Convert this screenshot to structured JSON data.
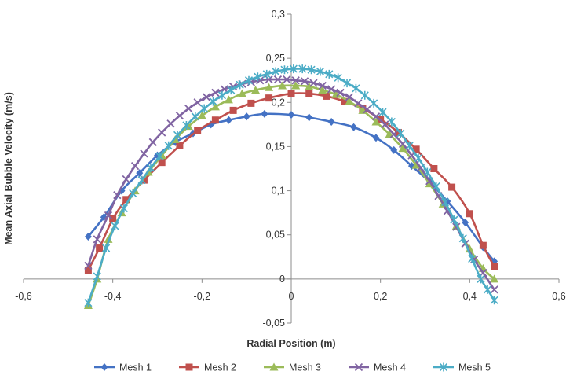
{
  "chart_data": {
    "type": "scatter",
    "title": "",
    "xlabel": "Radial Position (m)",
    "ylabel": "Mean Axial Bubble Velocity (m/s)",
    "xlim": [
      -0.6,
      0.6
    ],
    "ylim": [
      -0.05,
      0.3
    ],
    "x_ticks": [
      -0.6,
      -0.4,
      -0.2,
      0,
      0.2,
      0.4,
      0.6
    ],
    "x_tick_labels": [
      "-0,6",
      "-0,4",
      "-0,2",
      "0",
      "0,2",
      "0,4",
      "0,6"
    ],
    "y_ticks": [
      -0.05,
      0,
      0.05,
      0.1,
      0.15,
      0.2,
      0.25,
      0.3
    ],
    "y_tick_labels": [
      "-0,05",
      "0",
      "0,05",
      "0,1",
      "0,15",
      "0,2",
      "0,25",
      "0,3"
    ],
    "grid": false,
    "legend_position": "bottom",
    "series": [
      {
        "name": "Mesh 1",
        "color": "#4472C4",
        "marker": "diamond",
        "x": [
          -0.455,
          -0.42,
          -0.38,
          -0.34,
          -0.3,
          -0.26,
          -0.22,
          -0.18,
          -0.14,
          -0.1,
          -0.06,
          0,
          0.04,
          0.09,
          0.14,
          0.19,
          0.23,
          0.27,
          0.31,
          0.35,
          0.39,
          0.43,
          0.455
        ],
        "y": [
          0.048,
          0.07,
          0.1,
          0.12,
          0.14,
          0.155,
          0.165,
          0.175,
          0.18,
          0.184,
          0.187,
          0.186,
          0.183,
          0.178,
          0.172,
          0.16,
          0.146,
          0.128,
          0.11,
          0.088,
          0.064,
          0.036,
          0.02
        ]
      },
      {
        "name": "Mesh 2",
        "color": "#C0504D",
        "marker": "square",
        "x": [
          -0.455,
          -0.43,
          -0.4,
          -0.37,
          -0.33,
          -0.29,
          -0.25,
          -0.21,
          -0.17,
          -0.13,
          -0.09,
          -0.05,
          0,
          0.04,
          0.08,
          0.12,
          0.16,
          0.2,
          0.24,
          0.28,
          0.32,
          0.36,
          0.4,
          0.43,
          0.455
        ],
        "y": [
          0.01,
          0.035,
          0.068,
          0.09,
          0.112,
          0.132,
          0.151,
          0.168,
          0.18,
          0.191,
          0.199,
          0.205,
          0.21,
          0.21,
          0.207,
          0.201,
          0.193,
          0.181,
          0.166,
          0.147,
          0.125,
          0.104,
          0.074,
          0.038,
          0.014
        ]
      },
      {
        "name": "Mesh 3",
        "color": "#9BBB59",
        "marker": "triangle",
        "x": [
          -0.455,
          -0.435,
          -0.41,
          -0.38,
          -0.35,
          -0.32,
          -0.29,
          -0.26,
          -0.23,
          -0.2,
          -0.17,
          -0.14,
          -0.11,
          -0.08,
          -0.05,
          -0.02,
          0.01,
          0.04,
          0.07,
          0.1,
          0.13,
          0.16,
          0.19,
          0.22,
          0.25,
          0.28,
          0.31,
          0.34,
          0.37,
          0.4,
          0.43,
          0.455
        ],
        "y": [
          -0.03,
          0.0,
          0.045,
          0.075,
          0.1,
          0.121,
          0.14,
          0.158,
          0.173,
          0.185,
          0.195,
          0.203,
          0.21,
          0.214,
          0.217,
          0.219,
          0.219,
          0.218,
          0.214,
          0.209,
          0.201,
          0.191,
          0.178,
          0.164,
          0.148,
          0.129,
          0.108,
          0.085,
          0.06,
          0.034,
          0.012,
          0.0
        ]
      },
      {
        "name": "Mesh 4",
        "color": "#8064A2",
        "marker": "x",
        "x": [
          -0.455,
          -0.435,
          -0.41,
          -0.39,
          -0.37,
          -0.35,
          -0.33,
          -0.31,
          -0.29,
          -0.27,
          -0.25,
          -0.23,
          -0.21,
          -0.19,
          -0.17,
          -0.15,
          -0.13,
          -0.11,
          -0.09,
          -0.07,
          -0.05,
          -0.03,
          -0.01,
          0.01,
          0.03,
          0.05,
          0.07,
          0.09,
          0.11,
          0.13,
          0.15,
          0.17,
          0.19,
          0.21,
          0.23,
          0.25,
          0.27,
          0.29,
          0.31,
          0.33,
          0.35,
          0.37,
          0.39,
          0.41,
          0.43,
          0.455
        ],
        "y": [
          0.015,
          0.045,
          0.072,
          0.095,
          0.113,
          0.128,
          0.142,
          0.155,
          0.166,
          0.176,
          0.185,
          0.193,
          0.2,
          0.206,
          0.211,
          0.215,
          0.218,
          0.221,
          0.223,
          0.225,
          0.226,
          0.226,
          0.226,
          0.225,
          0.224,
          0.222,
          0.219,
          0.215,
          0.211,
          0.206,
          0.199,
          0.192,
          0.184,
          0.175,
          0.164,
          0.153,
          0.14,
          0.126,
          0.111,
          0.094,
          0.077,
          0.059,
          0.04,
          0.022,
          0.007,
          -0.012
        ]
      },
      {
        "name": "Mesh 5",
        "color": "#4BACC6",
        "marker": "star",
        "x": [
          -0.455,
          -0.435,
          -0.415,
          -0.395,
          -0.375,
          -0.355,
          -0.335,
          -0.315,
          -0.295,
          -0.275,
          -0.255,
          -0.235,
          -0.215,
          -0.195,
          -0.175,
          -0.155,
          -0.135,
          -0.115,
          -0.095,
          -0.075,
          -0.055,
          -0.035,
          -0.015,
          0.005,
          0.025,
          0.045,
          0.065,
          0.085,
          0.105,
          0.125,
          0.145,
          0.165,
          0.185,
          0.205,
          0.225,
          0.245,
          0.265,
          0.285,
          0.305,
          0.325,
          0.345,
          0.365,
          0.385,
          0.405,
          0.425,
          0.44,
          0.455
        ],
        "y": [
          -0.027,
          0.003,
          0.035,
          0.06,
          0.08,
          0.097,
          0.112,
          0.126,
          0.139,
          0.151,
          0.163,
          0.174,
          0.184,
          0.193,
          0.201,
          0.208,
          0.214,
          0.22,
          0.225,
          0.229,
          0.232,
          0.235,
          0.237,
          0.238,
          0.238,
          0.237,
          0.235,
          0.232,
          0.228,
          0.222,
          0.216,
          0.208,
          0.199,
          0.189,
          0.178,
          0.165,
          0.151,
          0.137,
          0.121,
          0.105,
          0.087,
          0.067,
          0.046,
          0.023,
          0.0,
          -0.012,
          -0.024
        ]
      }
    ]
  }
}
